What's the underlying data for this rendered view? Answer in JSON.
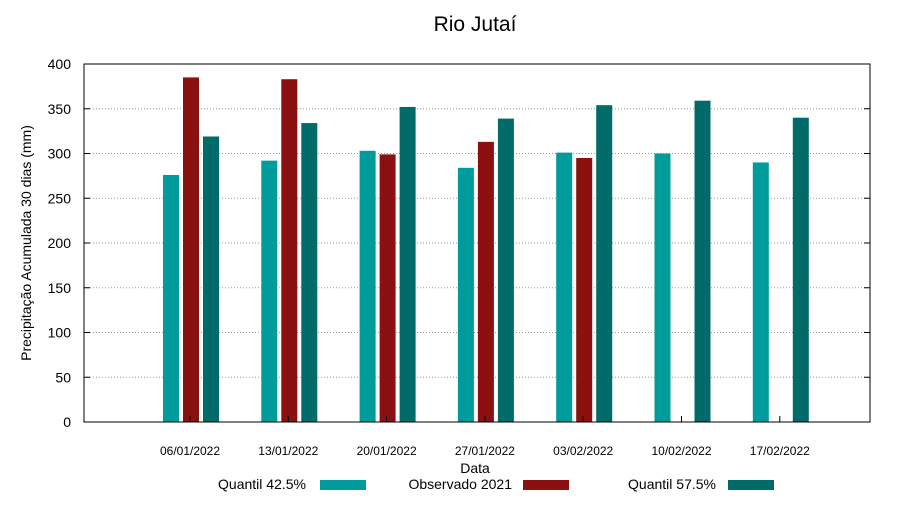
{
  "chart_data": {
    "type": "bar",
    "title": "Rio Jutaí",
    "xlabel": "Data",
    "ylabel": "Precipitação Acumulada 30 dias (mm)",
    "ylim": [
      0,
      400
    ],
    "yticks": [
      0,
      50,
      100,
      150,
      200,
      250,
      300,
      350,
      400
    ],
    "grid": true,
    "legend_position": "bottom",
    "categories": [
      "06/01/2022",
      "13/01/2022",
      "20/01/2022",
      "27/01/2022",
      "03/02/2022",
      "10/02/2022",
      "17/02/2022"
    ],
    "series": [
      {
        "name": "Quantil 42.5%",
        "color": "#009b9b",
        "values": [
          276,
          292,
          303,
          284,
          301,
          300,
          290
        ]
      },
      {
        "name": "Observado 2021",
        "color": "#8b1010",
        "values": [
          385,
          383,
          299,
          313,
          295,
          null,
          null
        ]
      },
      {
        "name": "Quantil 57.5%",
        "color": "#006b68",
        "values": [
          319,
          334,
          352,
          339,
          354,
          359,
          340
        ]
      }
    ]
  }
}
